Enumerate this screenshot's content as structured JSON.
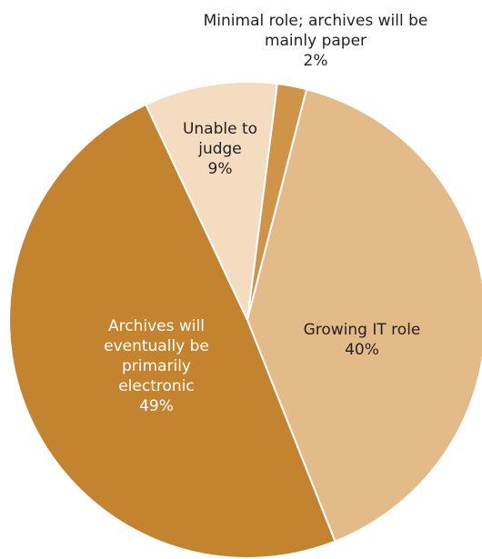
{
  "chart_data": {
    "type": "pie",
    "title": "",
    "slices": [
      {
        "label_lines": [
          "Minimal role; archives will be",
          "mainly paper"
        ],
        "value": 2,
        "value_label": "2%",
        "color": "#cf9448",
        "label_color": "#231f20"
      },
      {
        "label_lines": [
          "Growing IT role"
        ],
        "value": 40,
        "value_label": "40%",
        "color": "#e3bb88",
        "label_color": "#231f20"
      },
      {
        "label_lines": [
          "Archives will",
          "eventually be",
          "primarily",
          "electronic"
        ],
        "value": 49,
        "value_label": "49%",
        "color": "#c4832e",
        "label_color": "#ffffff"
      },
      {
        "label_lines": [
          "Unable to",
          "judge"
        ],
        "value": 9,
        "value_label": "9%",
        "color": "#f3dcc0",
        "label_color": "#231f20"
      }
    ],
    "start_angle_deg": 7.2,
    "direction": "clockwise",
    "separator_color": "#ffffff"
  }
}
